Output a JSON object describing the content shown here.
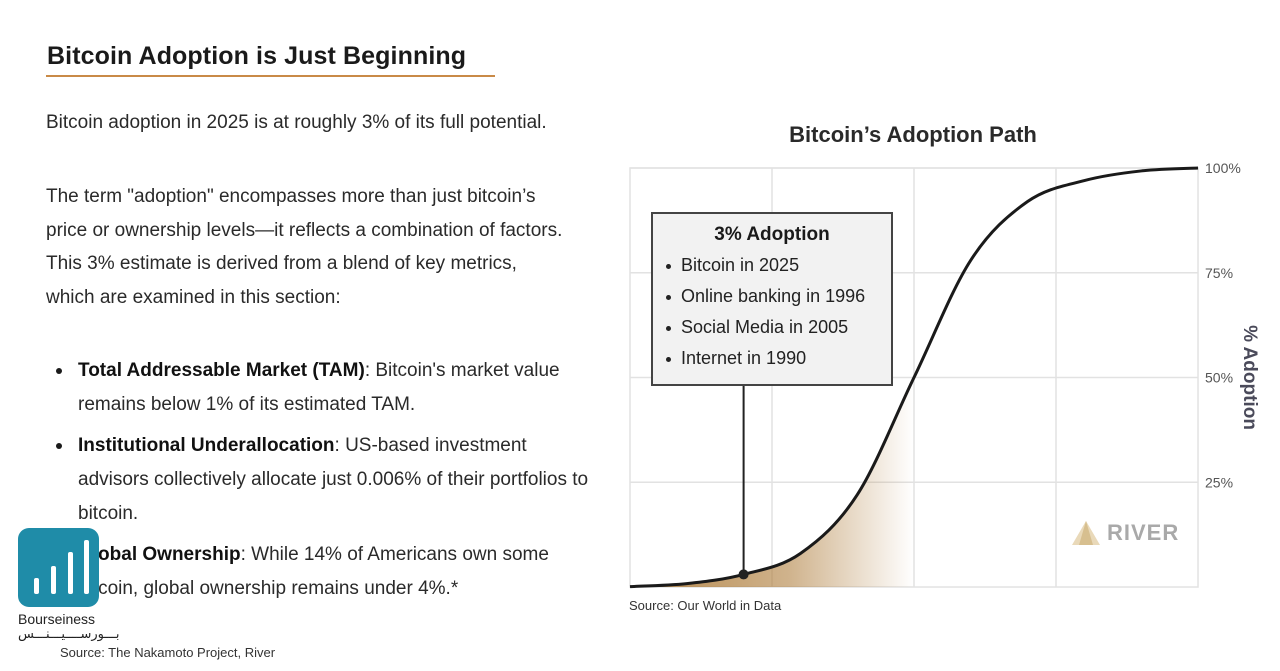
{
  "left_panel": {
    "heading": "Bitcoin Adoption is Just Beginning",
    "paragraph_1": "Bitcoin adoption in 2025 is at roughly 3% of its full potential.",
    "paragraph_2": "The term \"adoption\" encompasses more than just bitcoin’s price or ownership levels—it reflects a combination of factors. This 3% estimate is derived from a blend of key metrics, which are examined in this section:",
    "bullets": [
      {
        "label": "Total Addressable Market (TAM)",
        "text": ": Bitcoin's market value remains below 1% of its estimated TAM."
      },
      {
        "label": "Institutional Underallocation",
        "text": ": US-based investment advisors collectively allocate just 0.006% of their portfolios to bitcoin."
      },
      {
        "label": "Global Ownership",
        "text": ": While 14% of Americans own some bitcoin, global ownership remains under 4%.*"
      }
    ],
    "source": "Source: The Nakamoto Project, River"
  },
  "watermark": {
    "name": "Bourseiness",
    "subtitle": "بـــورســــيـــنـــس",
    "brand_color": "#1f8ca8",
    "icon": "bar-chart-icon"
  },
  "chart_panel": {
    "source": "Source: Our World in Data",
    "river_logo": {
      "text": "RIVER",
      "icon": "river-mountain-icon"
    },
    "callout": {
      "title": "3% Adoption",
      "items": [
        "Bitcoin in 2025",
        "Online banking in 1996",
        "Social Media in 2005",
        "Internet in 1990"
      ]
    },
    "colors": {
      "curve": "#1a1a1a",
      "fill": "#b08040",
      "grid": "#e2e2e2",
      "axis_label": "#4a4a5a"
    }
  },
  "chart_data": {
    "type": "area",
    "title": "Bitcoin’s Adoption Path",
    "xlabel": "",
    "ylabel": "% Adoption",
    "ylim": [
      0,
      100
    ],
    "y_ticks": [
      "25%",
      "50%",
      "75%",
      "100%"
    ],
    "grid": true,
    "legend": "none",
    "series": [
      {
        "x": [
          0,
          10,
          20,
          30,
          40,
          50,
          60,
          70,
          80,
          90,
          100
        ],
        "values": [
          0.1,
          0.8,
          3,
          8,
          22,
          50,
          78,
          92,
          97,
          99.3,
          100
        ]
      }
    ],
    "highlight": {
      "x": 20,
      "y": 3,
      "label": "3% Adoption"
    }
  }
}
